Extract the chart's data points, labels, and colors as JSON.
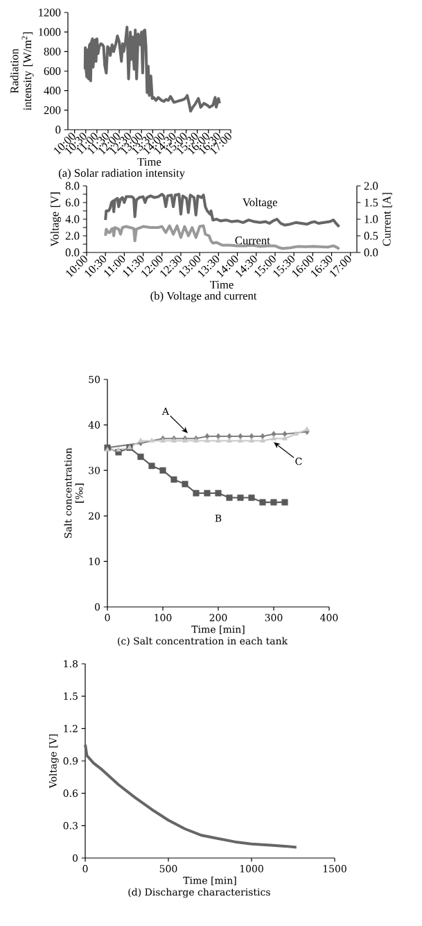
{
  "chart_data": [
    {
      "type": "line",
      "title": "(a) Solar radiation intensity",
      "xlabel": "Time",
      "ylabel": "Radiation intensity [W/m$^{2}$]",
      "xlim": [
        9.7,
        17
      ],
      "ylim": [
        0,
        1200
      ],
      "yticks": [
        0,
        200,
        400,
        600,
        800,
        1000,
        1200
      ],
      "xticks": [
        {
          "value": 10,
          "label": "10:00"
        },
        {
          "value": 10.5,
          "label": "10:30"
        },
        {
          "value": 11,
          "label": "11:00"
        },
        {
          "value": 11.5,
          "label": "11:30"
        },
        {
          "value": 12,
          "label": "12:00"
        },
        {
          "value": 12.5,
          "label": "12:30"
        },
        {
          "value": 13,
          "label": "13:00"
        },
        {
          "value": 13.5,
          "label": "13:30"
        },
        {
          "value": 14,
          "label": "14:00"
        },
        {
          "value": 14.5,
          "label": "14:30"
        },
        {
          "value": 15,
          "label": "15:00"
        },
        {
          "value": 15.5,
          "label": "15:30"
        },
        {
          "value": 16,
          "label": "16:00"
        },
        {
          "value": 16.5,
          "label": "16:30"
        },
        {
          "value": 17,
          "label": "17:00"
        }
      ],
      "series": [
        {
          "color": "#666666",
          "x": [
            10.47,
            10.48,
            10.52,
            10.55,
            10.6,
            10.63,
            10.66,
            10.7,
            10.72,
            10.76,
            10.8,
            10.83,
            10.88,
            10.92,
            10.96,
            11.0,
            11.05,
            11.1,
            11.18,
            11.25,
            11.3,
            11.35,
            11.42,
            11.48,
            11.55,
            11.6,
            11.68,
            11.75,
            11.85,
            11.92,
            12.0,
            12.05,
            12.1,
            12.15,
            12.2,
            12.28,
            12.35,
            12.42,
            12.5,
            12.55,
            12.6,
            12.67,
            12.72,
            12.78,
            12.85,
            12.92,
            13.0,
            13.05,
            13.1,
            13.15,
            13.2,
            13.25,
            13.3,
            13.35,
            13.42,
            13.48,
            13.55,
            13.65,
            13.75,
            13.9,
            14.0,
            14.1,
            14.2,
            14.3,
            14.45,
            14.6,
            14.75,
            14.9,
            15.0,
            15.05,
            15.15,
            15.2,
            15.3,
            15.4,
            15.55,
            15.65,
            15.8,
            15.95,
            16.05,
            16.2,
            16.3,
            16.35,
            16.45,
            16.5
          ],
          "values": [
            620,
            840,
            600,
            540,
            820,
            520,
            860,
            880,
            500,
            900,
            930,
            640,
            800,
            920,
            700,
            930,
            780,
            850,
            880,
            870,
            850,
            660,
            580,
            850,
            830,
            760,
            870,
            800,
            880,
            960,
            900,
            800,
            700,
            880,
            800,
            900,
            1050,
            520,
            1000,
            720,
            950,
            620,
            1020,
            520,
            980,
            870,
            1000,
            580,
            1010,
            1020,
            850,
            380,
            650,
            350,
            550,
            320,
            330,
            300,
            330,
            300,
            290,
            310,
            300,
            340,
            280,
            290,
            300,
            310,
            330,
            350,
            250,
            190,
            230,
            260,
            320,
            230,
            270,
            250,
            230,
            250,
            330,
            230,
            320,
            270
          ]
        }
      ]
    },
    {
      "type": "line",
      "title": "(b) Voltage and current",
      "xlabel": "Time",
      "ylabel": "Voltage [V]",
      "y2label": "Current [A]",
      "xlim": [
        10,
        17.17
      ],
      "ylim": [
        0,
        8
      ],
      "y2lim": [
        0,
        2
      ],
      "yticks": [
        {
          "value": 0,
          "label": "0.0"
        },
        {
          "value": 1,
          "label": null
        },
        {
          "value": 2,
          "label": "2.0"
        },
        {
          "value": 3,
          "label": null
        },
        {
          "value": 4,
          "label": "4.0"
        },
        {
          "value": 5,
          "label": null
        },
        {
          "value": 6,
          "label": "6.0"
        },
        {
          "value": 7,
          "label": null
        },
        {
          "value": 8,
          "label": "8.0"
        }
      ],
      "y2ticks": [
        {
          "value": 0,
          "label": "0.0"
        },
        {
          "value": 0.5,
          "label": "0.5"
        },
        {
          "value": 1,
          "label": "1.0"
        },
        {
          "value": 1.5,
          "label": "1.5"
        },
        {
          "value": 2,
          "label": "2.0"
        }
      ],
      "xticks": [
        {
          "value": 10,
          "label": "10:00"
        },
        {
          "value": 10.5,
          "label": "10:30"
        },
        {
          "value": 11,
          "label": "11:00"
        },
        {
          "value": 11.5,
          "label": "11:30"
        },
        {
          "value": 12,
          "label": "12:00"
        },
        {
          "value": 12.5,
          "label": "12:30"
        },
        {
          "value": 13,
          "label": "13:00"
        },
        {
          "value": 13.5,
          "label": "13:30"
        },
        {
          "value": 14,
          "label": "14:00"
        },
        {
          "value": 14.5,
          "label": "14:30"
        },
        {
          "value": 15,
          "label": "15:00"
        },
        {
          "value": 15.5,
          "label": "15:30"
        },
        {
          "value": 16,
          "label": "16:00"
        },
        {
          "value": 16.5,
          "label": "16:30"
        },
        {
          "value": 17,
          "label": "17:00"
        }
      ],
      "series": [
        {
          "name": "Voltage",
          "color": "#666666",
          "x": [
            10.5,
            10.52,
            10.58,
            10.62,
            10.66,
            10.7,
            10.72,
            10.75,
            10.82,
            10.85,
            10.9,
            10.95,
            11.0,
            11.05,
            11.15,
            11.2,
            11.25,
            11.28,
            11.32,
            11.4,
            11.5,
            11.55,
            11.6,
            11.7,
            11.8,
            11.9,
            12.0,
            12.05,
            12.1,
            12.15,
            12.25,
            12.3,
            12.35,
            12.45,
            12.5,
            12.55,
            12.65,
            12.7,
            12.75,
            12.85,
            12.9,
            12.95,
            13.05,
            13.1,
            13.15,
            13.2,
            13.28,
            13.3,
            13.35,
            13.45,
            13.55,
            13.7,
            13.85,
            14.0,
            14.15,
            14.3,
            14.45,
            14.6,
            14.75,
            14.85,
            14.95,
            15.05,
            15.15,
            15.25,
            15.4,
            15.55,
            15.7,
            15.85,
            15.95,
            16.05,
            16.15,
            16.3,
            16.45,
            16.55,
            16.6,
            16.7
          ],
          "values": [
            3.9,
            5.0,
            5.0,
            5.3,
            6.0,
            6.2,
            4.9,
            6.3,
            6.5,
            5.5,
            6.4,
            6.6,
            6.0,
            6.7,
            6.7,
            6.7,
            6.5,
            4.3,
            6.3,
            6.6,
            6.7,
            6.0,
            6.6,
            6.8,
            6.6,
            6.7,
            7.0,
            6.8,
            5.5,
            6.8,
            6.9,
            5.5,
            6.9,
            7.0,
            4.6,
            6.8,
            6.5,
            4.8,
            6.9,
            6.6,
            4.5,
            6.8,
            6.6,
            6.9,
            5.5,
            5.0,
            4.6,
            5.0,
            3.9,
            4.0,
            3.8,
            3.9,
            3.7,
            3.8,
            3.6,
            3.9,
            3.7,
            3.6,
            3.7,
            3.5,
            3.8,
            4.0,
            3.5,
            3.3,
            3.4,
            3.6,
            3.5,
            3.4,
            3.6,
            3.7,
            3.5,
            3.6,
            3.7,
            3.9,
            3.6,
            3.1
          ]
        },
        {
          "name": "Current",
          "color": "#999999",
          "axis": "y2",
          "x": [
            10.5,
            10.52,
            10.58,
            10.62,
            10.66,
            10.7,
            10.72,
            10.75,
            10.85,
            10.9,
            10.95,
            11.05,
            11.15,
            11.25,
            11.28,
            11.32,
            11.5,
            11.7,
            11.9,
            12.0,
            12.1,
            12.2,
            12.3,
            12.4,
            12.5,
            12.6,
            12.7,
            12.8,
            12.9,
            13.0,
            13.1,
            13.15,
            13.25,
            13.3,
            13.35,
            13.45,
            13.6,
            13.8,
            14.0,
            14.2,
            14.4,
            14.6,
            14.8,
            15.0,
            15.1,
            15.2,
            15.4,
            15.6,
            15.8,
            16.0,
            16.2,
            16.4,
            16.55,
            16.65,
            16.7
          ],
          "values": [
            0.5,
            0.7,
            0.6,
            0.6,
            0.7,
            0.72,
            0.5,
            0.75,
            0.7,
            0.55,
            0.75,
            0.78,
            0.75,
            0.72,
            0.35,
            0.7,
            0.78,
            0.75,
            0.75,
            0.78,
            0.6,
            0.8,
            0.55,
            0.8,
            0.45,
            0.78,
            0.5,
            0.75,
            0.45,
            0.78,
            0.8,
            0.55,
            0.5,
            0.35,
            0.28,
            0.3,
            0.22,
            0.22,
            0.2,
            0.2,
            0.22,
            0.18,
            0.2,
            0.2,
            0.15,
            0.12,
            0.14,
            0.18,
            0.17,
            0.18,
            0.17,
            0.16,
            0.2,
            0.15,
            0.1
          ]
        }
      ]
    },
    {
      "type": "line",
      "title": "(c) Salt concentration in each tank",
      "xlabel": "Time [min]",
      "ylabel": "Salt concentration [‰]",
      "xlim": [
        0,
        400
      ],
      "ylim": [
        0,
        50
      ],
      "xticks": [
        0,
        100,
        200,
        300,
        400
      ],
      "yticks": [
        0,
        10,
        20,
        30,
        40,
        50
      ],
      "series": [
        {
          "name": "A",
          "color": "#808080",
          "marker": "diamond",
          "x": [
            0,
            20,
            40,
            60,
            80,
            100,
            120,
            140,
            160,
            180,
            200,
            220,
            240,
            260,
            280,
            300,
            320,
            340,
            360
          ],
          "values": [
            35,
            null,
            null,
            36,
            null,
            37,
            37,
            37,
            37,
            37.5,
            37.5,
            37.5,
            37.5,
            37.5,
            37.5,
            38,
            38,
            null,
            38.5
          ]
        },
        {
          "name": "B",
          "color": "#595959",
          "marker": "square",
          "x": [
            0,
            20,
            40,
            60,
            80,
            100,
            120,
            140,
            160,
            180,
            200,
            220,
            240,
            260,
            280,
            300,
            320
          ],
          "values": [
            35,
            34,
            35,
            33,
            31,
            30,
            28,
            27,
            25,
            25,
            25,
            24,
            24,
            24,
            23,
            23,
            23
          ]
        },
        {
          "name": "C",
          "color": "#c8c8c8",
          "marker": "triangle",
          "x": [
            0,
            20,
            40,
            60,
            80,
            100,
            120,
            140,
            160,
            180,
            200,
            220,
            240,
            260,
            280,
            300,
            320,
            340,
            360
          ],
          "values": [
            34.5,
            34.5,
            35,
            36.5,
            36.5,
            36.5,
            36.5,
            36.5,
            36.5,
            36.5,
            36.5,
            36.5,
            36.5,
            36.5,
            36.5,
            37,
            37,
            38,
            39
          ]
        }
      ]
    },
    {
      "type": "line",
      "title": "(d) Discharge characteristics",
      "xlabel": "Time [min]",
      "ylabel": "Voltage [V]",
      "xlim": [
        0,
        1500
      ],
      "ylim": [
        0,
        1.8
      ],
      "xticks": [
        0,
        500,
        1000,
        1500
      ],
      "yticks": [
        0,
        0.3,
        0.6,
        0.9,
        1.2,
        1.5,
        1.8
      ],
      "series": [
        {
          "color": "#666666",
          "x": [
            0,
            10,
            50,
            100,
            200,
            300,
            400,
            500,
            600,
            700,
            800,
            900,
            1000,
            1100,
            1200,
            1270
          ],
          "values": [
            1.05,
            0.95,
            0.88,
            0.82,
            0.68,
            0.56,
            0.45,
            0.35,
            0.27,
            0.21,
            0.18,
            0.15,
            0.13,
            0.12,
            0.11,
            0.1
          ]
        }
      ]
    }
  ]
}
